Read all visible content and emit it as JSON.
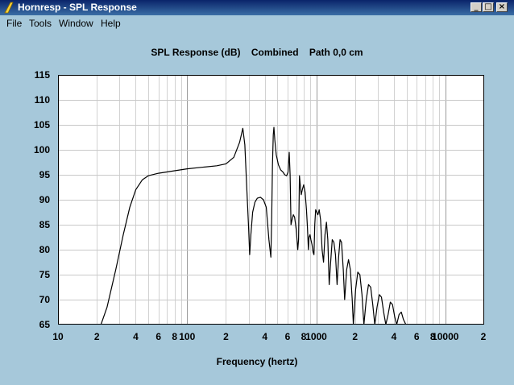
{
  "window": {
    "title": "Hornresp - SPL Response",
    "min_symbol": "_",
    "max_symbol": "□",
    "close_symbol": "×"
  },
  "menu": [
    "File",
    "Tools",
    "Window",
    "Help"
  ],
  "chart_title": "SPL Response (dB)    Combined    Path 0,0 cm",
  "chart_data": {
    "type": "line",
    "title": "SPL Response (dB)    Combined    Path 0,0 cm",
    "xlabel": "Frequency (hertz)",
    "ylabel": "",
    "x_scale": "log",
    "xlim": [
      10,
      20000
    ],
    "ylim": [
      65,
      115
    ],
    "y_ticks": [
      "115",
      "110",
      "105",
      "100",
      "95",
      "90",
      "85",
      "80",
      "75",
      "70",
      "65"
    ],
    "x_ticks": [
      {
        "value": 10,
        "label": "10"
      },
      {
        "value": 20,
        "label": "2"
      },
      {
        "value": 40,
        "label": "4"
      },
      {
        "value": 60,
        "label": "6"
      },
      {
        "value": 80,
        "label": "8"
      },
      {
        "value": 100,
        "label": "100"
      },
      {
        "value": 200,
        "label": "2"
      },
      {
        "value": 400,
        "label": "4"
      },
      {
        "value": 600,
        "label": "6"
      },
      {
        "value": 800,
        "label": "8"
      },
      {
        "value": 1000,
        "label": "1000"
      },
      {
        "value": 2000,
        "label": "2"
      },
      {
        "value": 4000,
        "label": "4"
      },
      {
        "value": 6000,
        "label": "6"
      },
      {
        "value": 8000,
        "label": "8"
      },
      {
        "value": 10000,
        "label": "10000"
      },
      {
        "value": 20000,
        "label": "2"
      }
    ],
    "grid": true,
    "series": [
      {
        "color": "#000000",
        "points": [
          [
            21.5,
            65
          ],
          [
            24,
            68.5
          ],
          [
            28,
            76
          ],
          [
            32,
            83
          ],
          [
            36,
            88.5
          ],
          [
            40,
            92
          ],
          [
            45,
            94
          ],
          [
            50,
            94.8
          ],
          [
            60,
            95.3
          ],
          [
            80,
            95.8
          ],
          [
            100,
            96.2
          ],
          [
            130,
            96.5
          ],
          [
            170,
            96.8
          ],
          [
            200,
            97.2
          ],
          [
            230,
            98.5
          ],
          [
            255,
            101.5
          ],
          [
            270,
            104.3
          ],
          [
            280,
            101
          ],
          [
            290,
            92
          ],
          [
            300,
            84
          ],
          [
            305,
            79
          ],
          [
            312,
            83
          ],
          [
            322,
            87.5
          ],
          [
            335,
            89.5
          ],
          [
            350,
            90.3
          ],
          [
            370,
            90.5
          ],
          [
            390,
            90
          ],
          [
            410,
            88.5
          ],
          [
            430,
            82
          ],
          [
            445,
            78.5
          ],
          [
            452,
            86
          ],
          [
            458,
            97
          ],
          [
            465,
            103
          ],
          [
            470,
            104.5
          ],
          [
            478,
            102
          ],
          [
            490,
            99
          ],
          [
            510,
            97
          ],
          [
            530,
            96
          ],
          [
            555,
            95.5
          ],
          [
            570,
            95
          ],
          [
            590,
            94.8
          ],
          [
            605,
            95.5
          ],
          [
            618,
            99.5
          ],
          [
            628,
            95
          ],
          [
            638,
            85
          ],
          [
            650,
            86
          ],
          [
            665,
            87
          ],
          [
            680,
            86.5
          ],
          [
            700,
            84
          ],
          [
            720,
            80
          ],
          [
            730,
            82
          ],
          [
            742,
            94.8
          ],
          [
            752,
            93
          ],
          [
            765,
            91
          ],
          [
            780,
            92
          ],
          [
            800,
            93
          ],
          [
            820,
            91.5
          ],
          [
            840,
            88
          ],
          [
            855,
            84.5
          ],
          [
            870,
            80
          ],
          [
            880,
            82.5
          ],
          [
            895,
            83
          ],
          [
            910,
            82
          ],
          [
            928,
            81
          ],
          [
            945,
            79.5
          ],
          [
            960,
            79
          ],
          [
            975,
            85
          ],
          [
            990,
            88
          ],
          [
            1010,
            87.5
          ],
          [
            1030,
            87
          ],
          [
            1055,
            88
          ],
          [
            1080,
            86
          ],
          [
            1110,
            80
          ],
          [
            1140,
            77.5
          ],
          [
            1170,
            83
          ],
          [
            1200,
            85.5
          ],
          [
            1230,
            82
          ],
          [
            1260,
            73
          ],
          [
            1290,
            77
          ],
          [
            1330,
            82
          ],
          [
            1370,
            81.5
          ],
          [
            1410,
            79
          ],
          [
            1450,
            73
          ],
          [
            1490,
            78.5
          ],
          [
            1530,
            82
          ],
          [
            1570,
            81.5
          ],
          [
            1620,
            76
          ],
          [
            1660,
            70
          ],
          [
            1720,
            76
          ],
          [
            1780,
            78
          ],
          [
            1840,
            76
          ],
          [
            1900,
            70
          ],
          [
            1940,
            65
          ],
          [
            2020,
            72
          ],
          [
            2100,
            75.5
          ],
          [
            2180,
            75
          ],
          [
            2260,
            71
          ],
          [
            2340,
            65
          ],
          [
            2440,
            70
          ],
          [
            2540,
            73
          ],
          [
            2640,
            72.5
          ],
          [
            2740,
            69
          ],
          [
            2840,
            65
          ],
          [
            2960,
            68.5
          ],
          [
            3080,
            71
          ],
          [
            3200,
            70.5
          ],
          [
            3330,
            67.5
          ],
          [
            3460,
            65
          ],
          [
            3600,
            67
          ],
          [
            3750,
            69.5
          ],
          [
            3900,
            69
          ],
          [
            4060,
            66.5
          ],
          [
            4200,
            65
          ],
          [
            4380,
            67
          ],
          [
            4560,
            67.5
          ],
          [
            4740,
            66
          ],
          [
            4950,
            65
          ]
        ]
      }
    ]
  }
}
